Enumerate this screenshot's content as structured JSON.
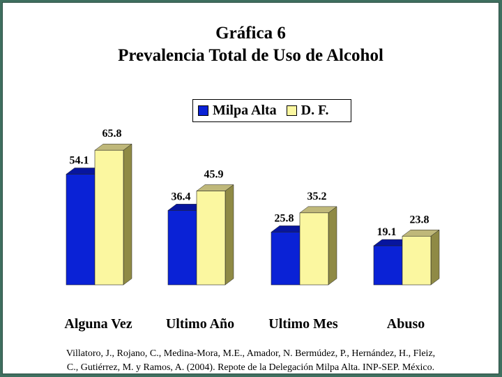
{
  "title": {
    "line1": "Gráfica 6",
    "line2": "Prevalencia Total de Uso de Alcohol"
  },
  "legend": [
    {
      "label": "Milpa Alta",
      "color": "#0a22d6"
    },
    {
      "label": "D. F.",
      "color": "#fbf7a0"
    }
  ],
  "source": {
    "line1": "Villatoro, J., Rojano, C., Medina-Mora, M.E., Amador, N. Bermúdez, P., Hernández, H., Fleiz,",
    "line2": "C., Gutiérrez, M. y Ramos, A. (2004). Repote de la Delegación Milpa Alta. INP-SEP. México."
  },
  "chart_data": {
    "type": "bar",
    "categories": [
      "Alguna Vez",
      "Ultimo Año",
      "Ultimo Mes",
      "Abuso"
    ],
    "series": [
      {
        "name": "Milpa Alta",
        "values": [
          54.1,
          36.4,
          25.8,
          19.1
        ],
        "labels": [
          "54.1",
          "36.4",
          "25.8",
          "19.1"
        ],
        "color": "#0a22d6"
      },
      {
        "name": "D. F.",
        "values": [
          65.8,
          45.9,
          35.2,
          23.8
        ],
        "labels": [
          "65.8",
          "45.9",
          "35.2",
          "23.8"
        ],
        "color": "#fbf7a0"
      }
    ],
    "ylim": [
      0,
      70
    ],
    "grid": false,
    "three_d": true,
    "legend_position": "top-center"
  }
}
